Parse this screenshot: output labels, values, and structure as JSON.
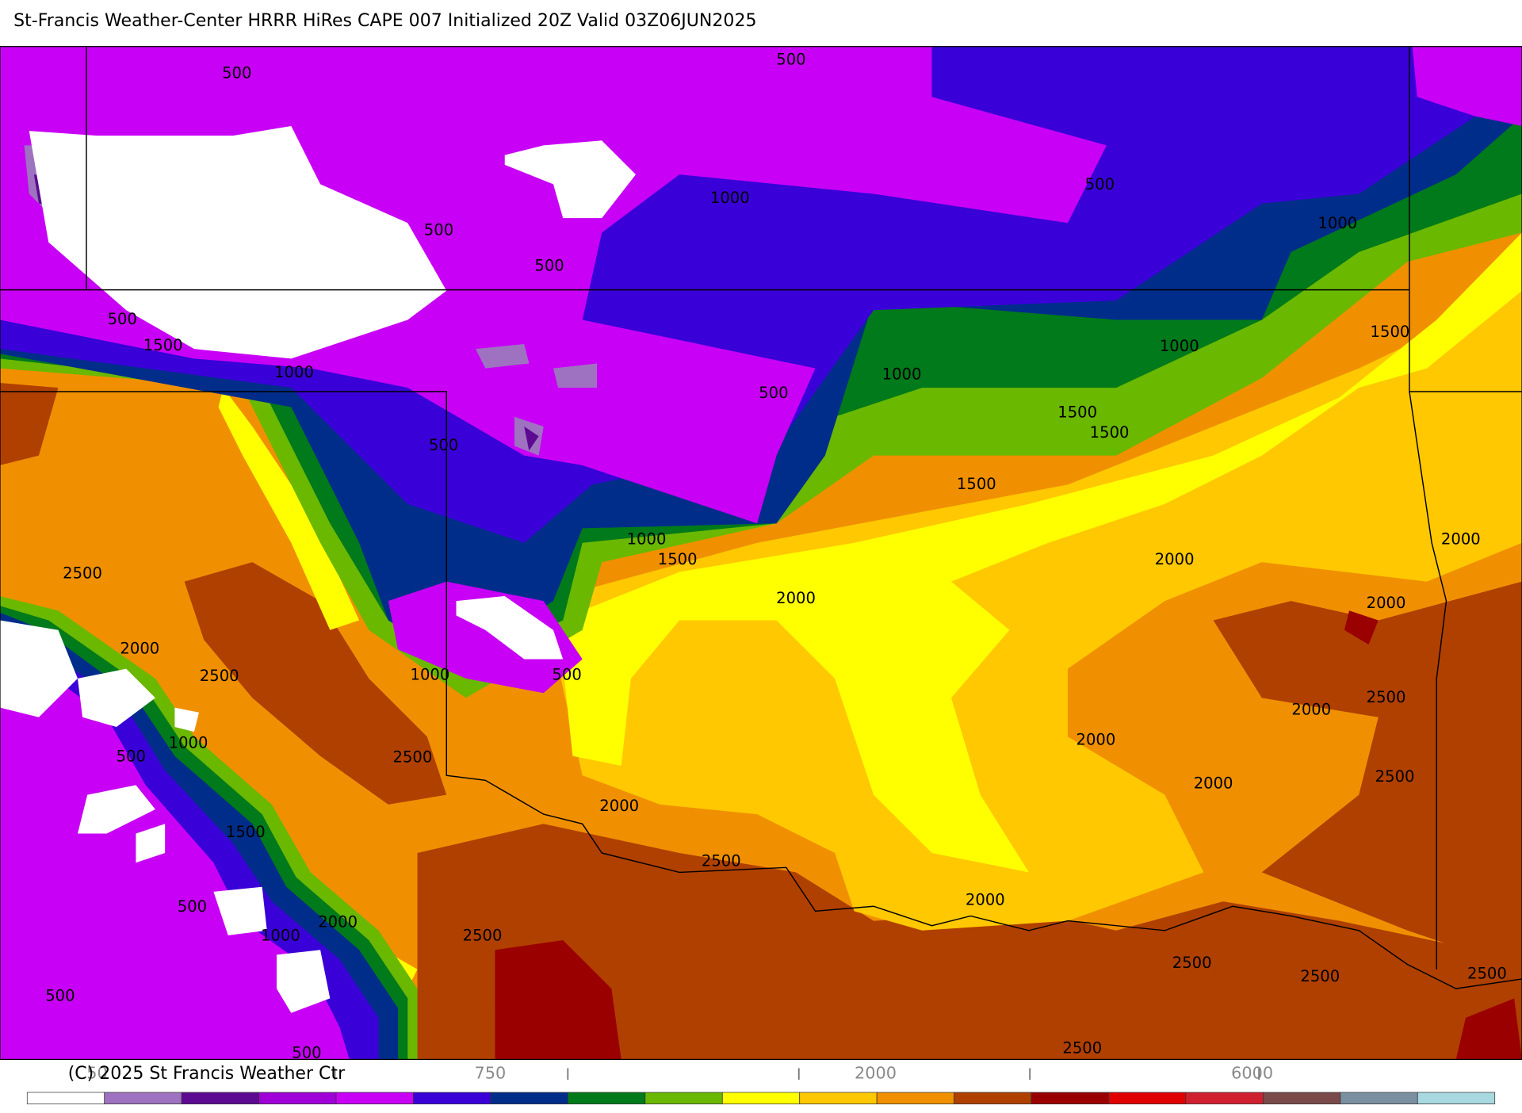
{
  "map": {
    "title": "St-Francis Weather-Center HRRR HiRes CAPE  007 Initialized  20Z Valid 03Z06JUN2025",
    "copyright": "(C) 2025 St Francis Weather Ctr",
    "contour_labels": [
      500,
      500,
      1000,
      500,
      1000,
      500,
      500,
      500,
      1500,
      1000,
      1000,
      1000,
      1500,
      500,
      1500,
      1500,
      500,
      1500,
      2000,
      1000,
      1500,
      2000,
      2500,
      2000,
      2000,
      2000,
      2500,
      1000,
      500,
      2500,
      2000,
      1000,
      2000,
      500,
      2500,
      2500,
      2000,
      2000,
      1500,
      2500,
      500,
      2000,
      2000,
      1000,
      2500,
      2500,
      2500,
      2500,
      500,
      500,
      2500
    ],
    "colorbar": {
      "colors": [
        "#ffffff",
        "#9e72c0",
        "#5c0a91",
        "#a000d8",
        "#c800f5",
        "#3a00d8",
        "#002d8a",
        "#007a1a",
        "#6ab800",
        "#ffff00",
        "#ffc800",
        "#f09000",
        "#b04000",
        "#9a0000",
        "#e00000",
        "#d02030",
        "#7a4a4a",
        "#7a90a0",
        "#a8d8e0"
      ],
      "labels": [
        50,
        750,
        2000,
        6000
      ]
    }
  }
}
